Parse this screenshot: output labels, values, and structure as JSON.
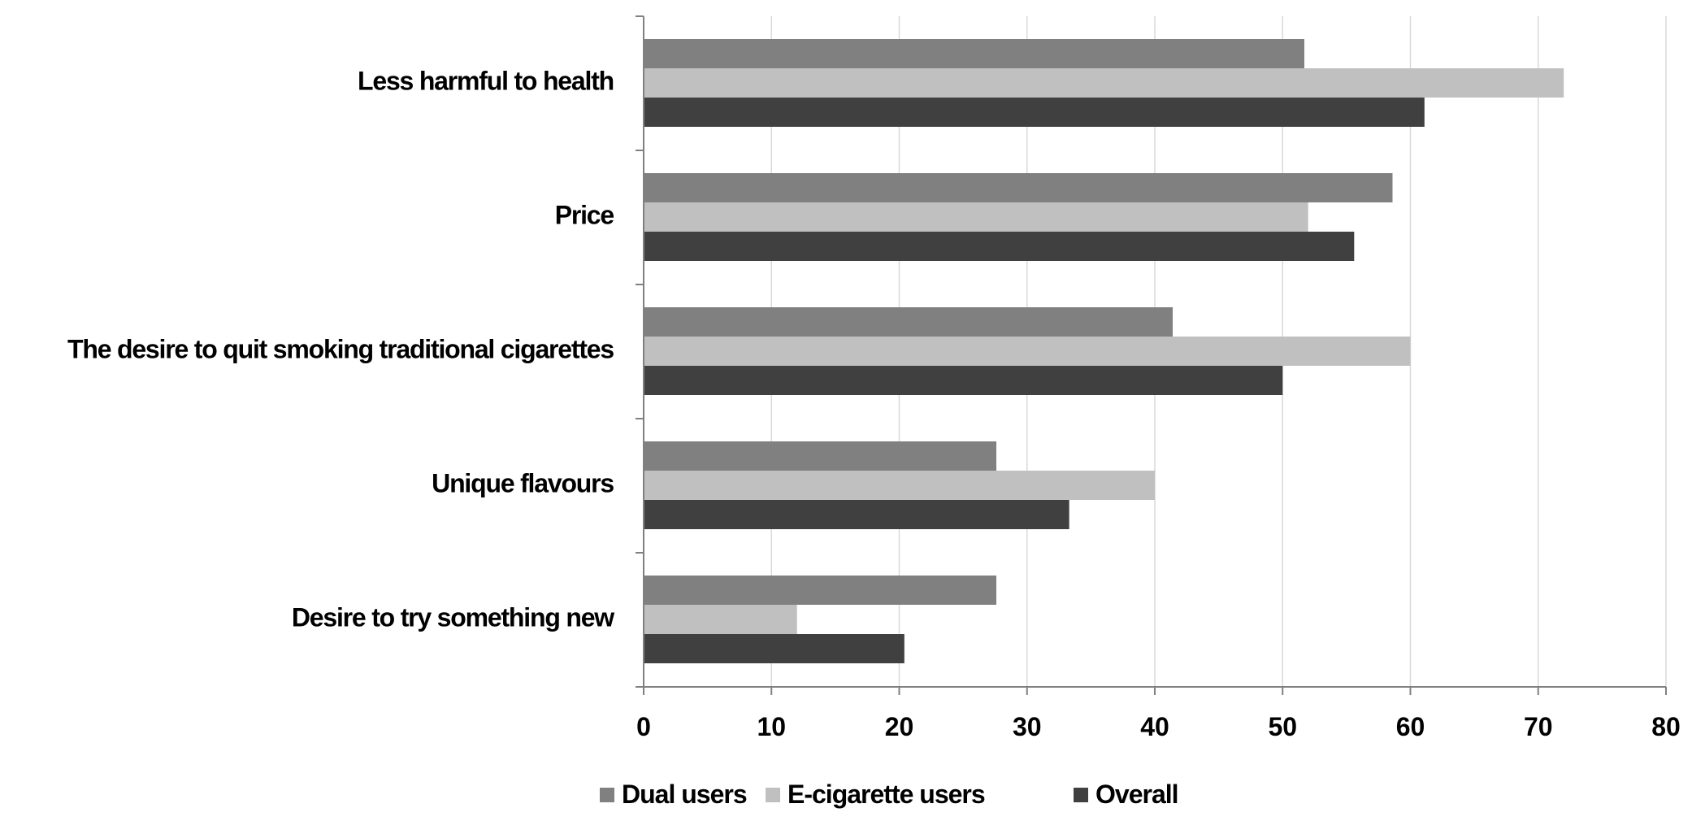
{
  "colors": {
    "dual_users": "#808080",
    "ecig_users": "#c0c0c0",
    "overall": "#404040",
    "grid": "#d9d9d9",
    "axis": "#808080"
  },
  "chart_data": {
    "type": "bar",
    "orientation": "horizontal",
    "categories": [
      "Less harmful to health",
      "Price",
      "The desire to quit smoking traditional cigarettes",
      "Unique flavours",
      "Desire to try something new"
    ],
    "series": [
      {
        "name": "Dual users",
        "values": [
          51.7,
          58.6,
          41.4,
          27.6,
          27.6
        ]
      },
      {
        "name": "E-cigarette users",
        "values": [
          72.0,
          52.0,
          60.0,
          40.0,
          12.0
        ]
      },
      {
        "name": "Overall",
        "values": [
          61.1,
          55.6,
          50.0,
          33.3,
          20.4
        ]
      }
    ],
    "xlim": [
      0,
      80
    ],
    "xticks": [
      "0",
      "10",
      "20",
      "30",
      "40",
      "50",
      "60",
      "70",
      "80"
    ],
    "grid": "vertical",
    "legend": "bottom"
  }
}
